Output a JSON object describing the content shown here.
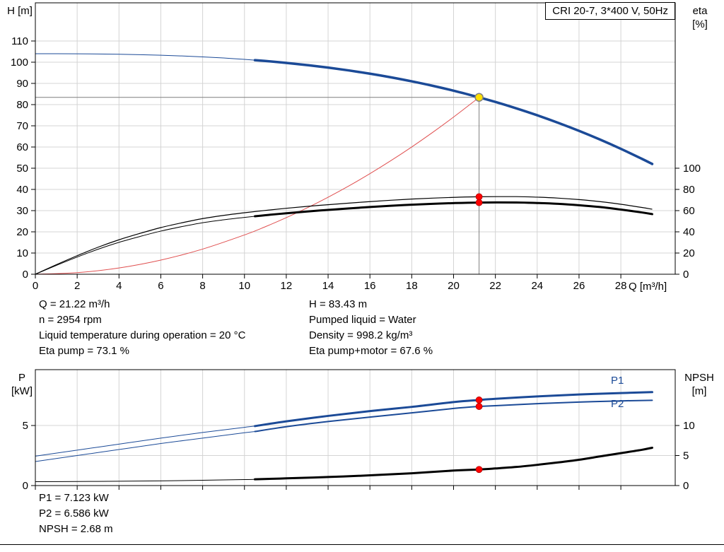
{
  "info": {
    "left": [
      "Q = 21.22 m³/h",
      "n = 2954 rpm",
      "Liquid temperature during operation = 20 °C",
      "Eta pump = 73.1 %"
    ],
    "right": [
      "H = 83.43 m",
      "Pumped liquid = Water",
      "Density = 998.2 kg/m³",
      "Eta pump+motor = 67.6 %"
    ]
  },
  "results": [
    "P1 = 7.123 kW",
    "P2 = 6.586 kW",
    "NPSH = 2.68 m"
  ],
  "colors": {
    "curve_blue": "#1b4a97",
    "curve_black": "#000000",
    "system_curve_red": "#e05050",
    "marker_red": "#ff0000",
    "duty_yellow": "#ffe000",
    "crosshair_gray": "#7f7f7f",
    "grid_gray": "#d4d4d4"
  },
  "chart_data": [
    {
      "type": "line",
      "title": "CRI 20-7, 3*400 V, 50Hz",
      "x_axis": {
        "label": "Q [m³/h]",
        "min": 0,
        "max": 30.6,
        "ticks": [
          0,
          2,
          4,
          6,
          8,
          10,
          12,
          14,
          16,
          18,
          20,
          22,
          24,
          26,
          28
        ],
        "show_labels": true
      },
      "y_left": {
        "label": "H [m]",
        "min": 0,
        "max": 128,
        "ticks": [
          0,
          10,
          20,
          30,
          40,
          50,
          60,
          70,
          80,
          90,
          100,
          110
        ]
      },
      "y_right": {
        "label": "eta [%]",
        "min": 0,
        "max": 256,
        "ticks": [
          0,
          20,
          40,
          60,
          80,
          100
        ]
      },
      "duty_point": {
        "q": 21.22,
        "h": 83.43
      },
      "series": [
        {
          "name": "System curve",
          "axis": "left",
          "color": "#e05050",
          "thin_width": 1,
          "thick_width": 1,
          "thick_from": 999,
          "points": [
            [
              0,
              0
            ],
            [
              2,
              0.74
            ],
            [
              4,
              2.96
            ],
            [
              6,
              6.67
            ],
            [
              8,
              11.86
            ],
            [
              10,
              18.53
            ],
            [
              11,
              22.42
            ],
            [
              12,
              26.68
            ],
            [
              13,
              31.32
            ],
            [
              14,
              36.32
            ],
            [
              15,
              41.69
            ],
            [
              16,
              47.43
            ],
            [
              17,
              53.55
            ],
            [
              18,
              60.03
            ],
            [
              19,
              66.89
            ],
            [
              20,
              74.12
            ],
            [
              21,
              81.71
            ],
            [
              21.22,
              83.43
            ]
          ]
        },
        {
          "name": "Head",
          "axis": "left",
          "color": "#1b4a97",
          "thin_width": 1,
          "thick_width": 3.5,
          "thick_from": 10.5,
          "points": [
            [
              0,
              104
            ],
            [
              1,
              103.99
            ],
            [
              2,
              103.95
            ],
            [
              3,
              103.87
            ],
            [
              4,
              103.74
            ],
            [
              5,
              103.55
            ],
            [
              6,
              103.29
            ],
            [
              7,
              102.94
            ],
            [
              8,
              102.51
            ],
            [
              9,
              101.98
            ],
            [
              10,
              101.34
            ],
            [
              10.5,
              100.97
            ],
            [
              11,
              100.57
            ],
            [
              12,
              99.68
            ],
            [
              13,
              98.64
            ],
            [
              14,
              97.45
            ],
            [
              15,
              96.1
            ],
            [
              16,
              94.58
            ],
            [
              17,
              92.88
            ],
            [
              18,
              90.97
            ],
            [
              19,
              88.87
            ],
            [
              20,
              86.56
            ],
            [
              21,
              84.02
            ],
            [
              21.22,
              83.43
            ],
            [
              22,
              81.26
            ],
            [
              23,
              78.23
            ],
            [
              24,
              74.97
            ],
            [
              25,
              71.43
            ],
            [
              26,
              67.63
            ],
            [
              27,
              63.54
            ],
            [
              28,
              59.15
            ],
            [
              29,
              54.46
            ],
            [
              29.5,
              52.0
            ]
          ]
        },
        {
          "name": "Eta pump",
          "axis": "right",
          "color": "#000000",
          "thin_width": 1.2,
          "thick_width": 1.2,
          "thick_from": 999,
          "points": [
            [
              0,
              0
            ],
            [
              1,
              9
            ],
            [
              2,
              17.5
            ],
            [
              3,
              25.5
            ],
            [
              4,
              32.5
            ],
            [
              5,
              38.5
            ],
            [
              6,
              44
            ],
            [
              7,
              48.5
            ],
            [
              8,
              52.5
            ],
            [
              9,
              55.5
            ],
            [
              10,
              58
            ],
            [
              11,
              60.2
            ],
            [
              12,
              62.2
            ],
            [
              13,
              64
            ],
            [
              14,
              65.6
            ],
            [
              15,
              67.1
            ],
            [
              16,
              68.5
            ],
            [
              17,
              69.8
            ],
            [
              18,
              70.9
            ],
            [
              19,
              71.8
            ],
            [
              20,
              72.5
            ],
            [
              21.22,
              73.1
            ],
            [
              23,
              73.2
            ],
            [
              24,
              72.7
            ],
            [
              25,
              71.8
            ],
            [
              26,
              70.4
            ],
            [
              27,
              68.5
            ],
            [
              28,
              66
            ],
            [
              29,
              63
            ],
            [
              29.5,
              61.3
            ]
          ]
        },
        {
          "name": "Eta pump+motor",
          "axis": "right",
          "color": "#000000",
          "thin_width": 1,
          "thick_width": 3,
          "thick_from": 10.5,
          "points": [
            [
              0,
              0
            ],
            [
              1,
              8.3
            ],
            [
              2,
              16.2
            ],
            [
              3,
              23.6
            ],
            [
              4,
              30.1
            ],
            [
              5,
              35.6
            ],
            [
              6,
              40.7
            ],
            [
              7,
              44.9
            ],
            [
              8,
              48.6
            ],
            [
              9,
              51.3
            ],
            [
              10,
              53.6
            ],
            [
              10.5,
              54.7
            ],
            [
              11,
              55.7
            ],
            [
              12,
              57.5
            ],
            [
              13,
              59.2
            ],
            [
              14,
              60.7
            ],
            [
              15,
              62.1
            ],
            [
              16,
              63.4
            ],
            [
              17,
              64.6
            ],
            [
              18,
              65.6
            ],
            [
              19,
              66.4
            ],
            [
              20,
              67.1
            ],
            [
              21.22,
              67.6
            ],
            [
              23,
              67.7
            ],
            [
              24,
              67.2
            ],
            [
              25,
              66.4
            ],
            [
              26,
              65.1
            ],
            [
              27,
              63.4
            ],
            [
              28,
              61
            ],
            [
              29,
              58.3
            ],
            [
              29.5,
              56.7
            ]
          ]
        }
      ],
      "markers": [
        {
          "series": "Eta pump",
          "q": 21.22,
          "value": 73.1,
          "color": "#ff0000"
        },
        {
          "series": "Eta pump+motor",
          "q": 21.22,
          "value": 67.6,
          "color": "#ff0000"
        }
      ]
    },
    {
      "type": "line",
      "x_axis": {
        "label": "",
        "min": 0,
        "max": 30.6,
        "ticks": [
          0,
          2,
          4,
          6,
          8,
          10,
          12,
          14,
          16,
          18,
          20,
          22,
          24,
          26,
          28
        ],
        "show_labels": false
      },
      "y_left": {
        "label": "P [kW]",
        "min": 0,
        "max": 9.65,
        "ticks": [
          0,
          5
        ]
      },
      "y_right": {
        "label": "NPSH [m]",
        "min": 0,
        "max": 19.3,
        "ticks": [
          0,
          5,
          10
        ]
      },
      "series": [
        {
          "name": "P1",
          "axis": "left",
          "color": "#1b4a97",
          "thin_width": 1,
          "thick_width": 3,
          "thick_from": 10.5,
          "points": [
            [
              0,
              2.45
            ],
            [
              2,
              2.95
            ],
            [
              4,
              3.45
            ],
            [
              6,
              3.95
            ],
            [
              8,
              4.42
            ],
            [
              10,
              4.85
            ],
            [
              10.5,
              4.95
            ],
            [
              12,
              5.35
            ],
            [
              14,
              5.8
            ],
            [
              16,
              6.2
            ],
            [
              18,
              6.55
            ],
            [
              20,
              6.95
            ],
            [
              21.22,
              7.123
            ],
            [
              22,
              7.22
            ],
            [
              24,
              7.42
            ],
            [
              26,
              7.58
            ],
            [
              28,
              7.7
            ],
            [
              29.5,
              7.78
            ]
          ]
        },
        {
          "name": "P2",
          "axis": "left",
          "color": "#1b4a97",
          "thin_width": 1,
          "thick_width": 2,
          "thick_from": 10.5,
          "points": [
            [
              0,
              2.0
            ],
            [
              2,
              2.5
            ],
            [
              4,
              3.0
            ],
            [
              6,
              3.5
            ],
            [
              8,
              3.95
            ],
            [
              10,
              4.4
            ],
            [
              10.5,
              4.5
            ],
            [
              12,
              4.9
            ],
            [
              14,
              5.33
            ],
            [
              16,
              5.7
            ],
            [
              18,
              6.05
            ],
            [
              20,
              6.42
            ],
            [
              21.22,
              6.586
            ],
            [
              22,
              6.65
            ],
            [
              24,
              6.82
            ],
            [
              26,
              6.95
            ],
            [
              28,
              7.05
            ],
            [
              29.5,
              7.1
            ]
          ]
        },
        {
          "name": "NPSH",
          "axis": "right",
          "color": "#000000",
          "thin_width": 1,
          "thick_width": 3,
          "thick_from": 10.5,
          "points": [
            [
              0,
              0.65
            ],
            [
              2,
              0.68
            ],
            [
              4,
              0.72
            ],
            [
              6,
              0.78
            ],
            [
              8,
              0.88
            ],
            [
              10,
              1.0
            ],
            [
              10.5,
              1.04
            ],
            [
              12,
              1.2
            ],
            [
              14,
              1.42
            ],
            [
              16,
              1.7
            ],
            [
              18,
              2.05
            ],
            [
              20,
              2.5
            ],
            [
              21.22,
              2.68
            ],
            [
              22,
              2.85
            ],
            [
              23,
              3.1
            ],
            [
              24,
              3.45
            ],
            [
              25,
              3.85
            ],
            [
              26,
              4.3
            ],
            [
              27,
              4.85
            ],
            [
              28,
              5.4
            ],
            [
              29,
              5.95
            ],
            [
              29.5,
              6.3
            ]
          ]
        }
      ],
      "markers": [
        {
          "series": "P1",
          "q": 21.22,
          "value": 7.123,
          "color": "#ff0000"
        },
        {
          "series": "P2",
          "q": 21.22,
          "value": 6.586,
          "color": "#ff0000"
        },
        {
          "series": "NPSH",
          "q": 21.22,
          "value": 2.68,
          "color": "#ff0000"
        }
      ]
    }
  ]
}
